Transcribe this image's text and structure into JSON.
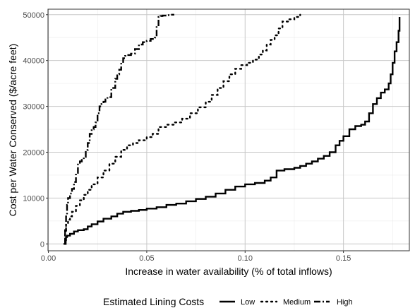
{
  "chart_data": {
    "type": "line",
    "xlabel": "Increase in water availability (% of total inflows)",
    "ylabel": "Cost per Water Conserved ($/acre feet)",
    "xlim": [
      -0.0002,
      0.1835
    ],
    "ylim": [
      -1500,
      51200
    ],
    "x_ticks": [
      0.0,
      0.05,
      0.1,
      0.15
    ],
    "x_tick_labels": [
      "0.00",
      "0.05",
      "0.10",
      "0.15"
    ],
    "y_ticks": [
      0,
      10000,
      20000,
      30000,
      40000,
      50000
    ],
    "y_tick_labels": [
      "0",
      "10000",
      "20000",
      "30000",
      "40000",
      "50000"
    ],
    "grid": true,
    "legend": {
      "title": "Estimated Lining Costs",
      "position": "bottom"
    },
    "series": [
      {
        "name": "Low",
        "style": "solid",
        "x": [
          0.0085,
          0.0088,
          0.009,
          0.0095,
          0.011,
          0.013,
          0.015,
          0.018,
          0.02,
          0.022,
          0.025,
          0.028,
          0.032,
          0.035,
          0.038,
          0.042,
          0.046,
          0.05,
          0.055,
          0.06,
          0.065,
          0.07,
          0.075,
          0.08,
          0.085,
          0.09,
          0.095,
          0.1,
          0.105,
          0.11,
          0.113,
          0.116,
          0.12,
          0.125,
          0.128,
          0.131,
          0.134,
          0.137,
          0.14,
          0.143,
          0.146,
          0.148,
          0.15,
          0.153,
          0.156,
          0.159,
          0.161,
          0.163,
          0.165,
          0.167,
          0.169,
          0.171,
          0.173,
          0.174,
          0.175,
          0.176,
          0.177,
          0.178,
          0.1785
        ],
        "y": [
          0,
          800,
          1500,
          1800,
          2200,
          2700,
          3000,
          3200,
          3800,
          4300,
          4900,
          5500,
          6000,
          6600,
          7000,
          7200,
          7400,
          7700,
          8000,
          8500,
          8800,
          9300,
          9800,
          10300,
          11000,
          11800,
          12500,
          13000,
          13300,
          13800,
          14500,
          16000,
          16300,
          16600,
          17000,
          17500,
          18000,
          18600,
          19200,
          20000,
          21500,
          22500,
          23500,
          25000,
          25700,
          26000,
          26700,
          28500,
          30500,
          31800,
          33000,
          33700,
          35000,
          37000,
          39500,
          42000,
          44000,
          46500,
          49500
        ]
      },
      {
        "name": "Medium",
        "style": "dotted",
        "x": [
          0.008,
          0.0085,
          0.009,
          0.01,
          0.011,
          0.012,
          0.014,
          0.016,
          0.018,
          0.02,
          0.022,
          0.025,
          0.028,
          0.031,
          0.034,
          0.037,
          0.04,
          0.043,
          0.046,
          0.05,
          0.053,
          0.056,
          0.06,
          0.064,
          0.068,
          0.072,
          0.076,
          0.08,
          0.083,
          0.086,
          0.089,
          0.092,
          0.095,
          0.098,
          0.101,
          0.104,
          0.107,
          0.109,
          0.111,
          0.113,
          0.115,
          0.117,
          0.119,
          0.122,
          0.125,
          0.128
        ],
        "y": [
          0,
          2500,
          4500,
          5300,
          6000,
          7000,
          8300,
          9500,
          10700,
          11800,
          13000,
          14500,
          16000,
          17500,
          19000,
          20500,
          21500,
          22000,
          22600,
          23300,
          24000,
          25500,
          26000,
          26500,
          27300,
          28500,
          29800,
          31000,
          32500,
          34000,
          35500,
          37000,
          38200,
          39000,
          39500,
          40200,
          41300,
          42200,
          43500,
          44500,
          45500,
          47000,
          48500,
          49000,
          49500,
          50000
        ]
      },
      {
        "name": "High",
        "style": "dashed",
        "x": [
          0.008,
          0.0085,
          0.009,
          0.0095,
          0.01,
          0.011,
          0.012,
          0.013,
          0.014,
          0.015,
          0.016,
          0.017,
          0.018,
          0.019,
          0.02,
          0.021,
          0.022,
          0.023,
          0.024,
          0.025,
          0.026,
          0.027,
          0.028,
          0.029,
          0.03,
          0.032,
          0.034,
          0.035,
          0.036,
          0.037,
          0.038,
          0.039,
          0.04,
          0.042,
          0.044,
          0.046,
          0.048,
          0.05,
          0.052,
          0.054,
          0.055,
          0.056,
          0.057,
          0.058,
          0.06,
          0.062,
          0.064
        ],
        "y": [
          0,
          3000,
          6000,
          8500,
          10000,
          11000,
          12000,
          13500,
          15500,
          17500,
          18000,
          18500,
          19000,
          20500,
          22000,
          24000,
          25000,
          25500,
          26500,
          28500,
          30000,
          30500,
          31000,
          31500,
          32000,
          34000,
          36000,
          37000,
          38000,
          39500,
          40500,
          41000,
          41200,
          41500,
          42500,
          43500,
          44000,
          44300,
          44700,
          45000,
          47500,
          49500,
          49700,
          49800,
          49900,
          50000,
          50000
        ]
      }
    ]
  }
}
